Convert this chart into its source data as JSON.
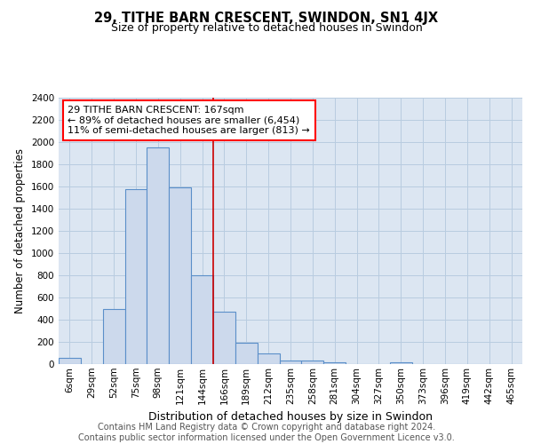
{
  "title": "29, TITHE BARN CRESCENT, SWINDON, SN1 4JX",
  "subtitle": "Size of property relative to detached houses in Swindon",
  "xlabel": "Distribution of detached houses by size in Swindon",
  "ylabel": "Number of detached properties",
  "footer_line1": "Contains HM Land Registry data © Crown copyright and database right 2024.",
  "footer_line2": "Contains public sector information licensed under the Open Government Licence v3.0.",
  "categories": [
    "6sqm",
    "29sqm",
    "52sqm",
    "75sqm",
    "98sqm",
    "121sqm",
    "144sqm",
    "166sqm",
    "189sqm",
    "212sqm",
    "235sqm",
    "258sqm",
    "281sqm",
    "304sqm",
    "327sqm",
    "350sqm",
    "373sqm",
    "396sqm",
    "419sqm",
    "442sqm",
    "465sqm"
  ],
  "values": [
    55,
    0,
    500,
    1580,
    1950,
    1590,
    800,
    475,
    190,
    95,
    35,
    30,
    20,
    0,
    0,
    20,
    0,
    0,
    0,
    0,
    0
  ],
  "bar_color": "#ccd9ec",
  "bar_edge_color": "#5b8fc9",
  "bar_linewidth": 0.8,
  "red_line_index": 7,
  "red_line_color": "#cc0000",
  "annotation_text": "29 TITHE BARN CRESCENT: 167sqm\n← 89% of detached houses are smaller (6,454)\n11% of semi-detached houses are larger (813) →",
  "annotation_fontsize": 8,
  "ylim": [
    0,
    2400
  ],
  "yticks": [
    0,
    200,
    400,
    600,
    800,
    1000,
    1200,
    1400,
    1600,
    1800,
    2000,
    2200,
    2400
  ],
  "grid_color": "#b8cce0",
  "bg_color": "#dce6f2",
  "title_fontsize": 10.5,
  "subtitle_fontsize": 9,
  "xlabel_fontsize": 9,
  "ylabel_fontsize": 8.5,
  "tick_fontsize": 7.5,
  "footer_fontsize": 7
}
